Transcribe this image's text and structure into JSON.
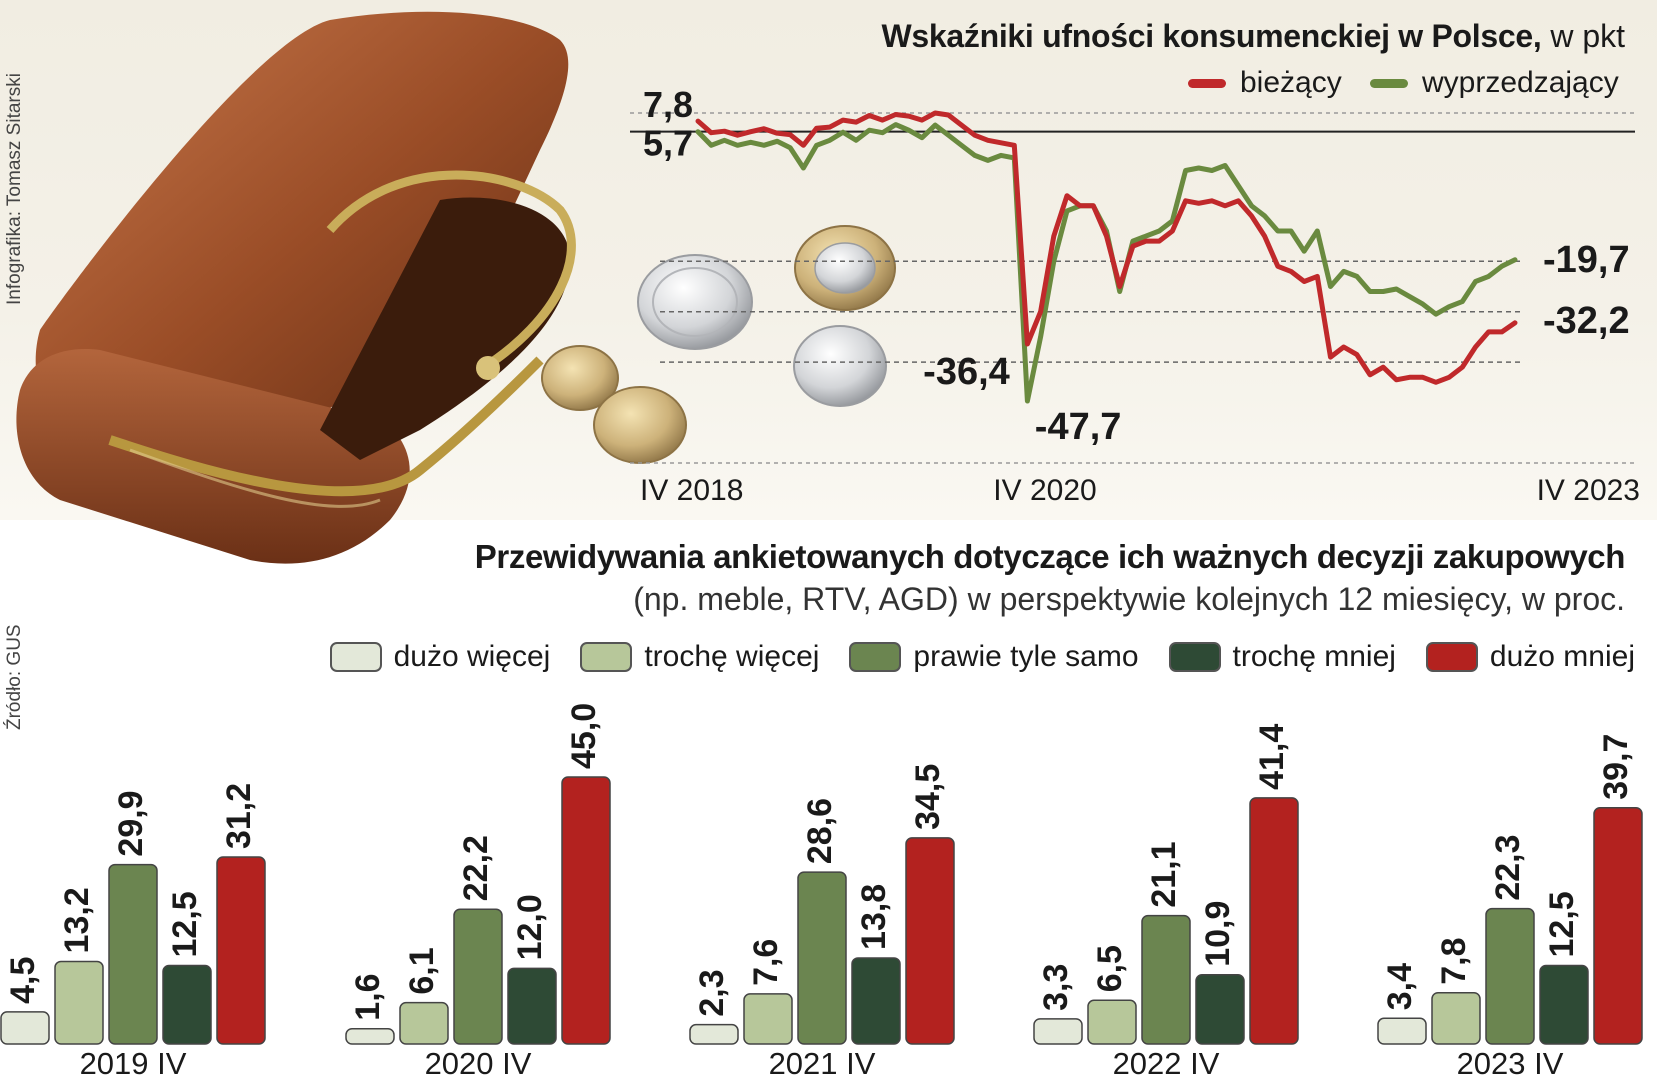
{
  "credits": {
    "infographic": "Infografika: Tomasz Sitarski",
    "source": "Źródło: GUS"
  },
  "colors": {
    "current": "#c0292b",
    "leading": "#6a8a3f",
    "very_more": "#e3e8d9",
    "bit_more": "#b7c79a",
    "same": "#6b8550",
    "bit_less": "#2e4a35",
    "much_less": "#b3221f"
  },
  "chart_data": [
    {
      "type": "line",
      "title": "Wskaźniki ufności konsumenckiej w Polsce,",
      "units": "w pkt",
      "x_labels": [
        "IV 2018",
        "IV 2020",
        "IV 2023"
      ],
      "x_range": [
        "2018-04",
        "2023-04"
      ],
      "ylim": [
        -60,
        10
      ],
      "reference_lines": [
        5.7,
        -20,
        -30,
        -40
      ],
      "annotations": [
        {
          "series": "bieżący",
          "date": "2018-04",
          "label": "7,8"
        },
        {
          "series": "wyprzedzający",
          "date": "2018-04",
          "label": "5,7"
        },
        {
          "series": "bieżący",
          "date": "2020-04",
          "label": "-36,4"
        },
        {
          "series": "wyprzedzający",
          "date": "2020-04",
          "label": "-47,7"
        },
        {
          "series": "wyprzedzający",
          "date": "2023-04",
          "label": "-19,7"
        },
        {
          "series": "bieżący",
          "date": "2023-04",
          "label": "-32,2"
        }
      ],
      "series": [
        {
          "name": "bieżący",
          "values": [
            7.8,
            5.5,
            5.8,
            5.0,
            5.7,
            6.3,
            5.4,
            5.1,
            3.0,
            6.4,
            6.6,
            8.0,
            7.6,
            8.9,
            8.0,
            9.1,
            8.8,
            8.0,
            9.4,
            9.0,
            7.0,
            5.0,
            4.0,
            3.5,
            3.0,
            -36.4,
            -30.0,
            -15.0,
            -7.0,
            -9.0,
            -9.0,
            -15.0,
            -25.0,
            -17.0,
            -16.0,
            -16.0,
            -14.0,
            -8.0,
            -8.5,
            -8.0,
            -9.0,
            -8.0,
            -11.0,
            -15.0,
            -21.0,
            -22.0,
            -24.0,
            -23.0,
            -39.0,
            -37.0,
            -38.5,
            -42.5,
            -41.0,
            -43.5,
            -43.0,
            -43.0,
            -44.0,
            -43.0,
            -41.0,
            -37.0,
            -34.0,
            -34.0,
            -32.2
          ]
        },
        {
          "name": "wyprzedzający",
          "values": [
            5.7,
            3.0,
            4.0,
            3.0,
            3.6,
            3.0,
            3.8,
            2.5,
            -1.5,
            3.0,
            4.0,
            5.6,
            4.0,
            6.0,
            5.5,
            7.1,
            6.0,
            4.5,
            7.0,
            5.0,
            3.0,
            1.0,
            0.0,
            1.0,
            0.5,
            -47.7,
            -35.0,
            -20.0,
            -10.0,
            -9.0,
            -9.0,
            -14.0,
            -26.0,
            -16.0,
            -15.0,
            -14.0,
            -12.0,
            -2.0,
            -1.5,
            -2.0,
            -1.0,
            -5.0,
            -9.0,
            -11.0,
            -14.0,
            -14.0,
            -18.0,
            -14.0,
            -25.0,
            -22.0,
            -23.0,
            -26.0,
            -26.0,
            -25.5,
            -27.0,
            -28.5,
            -30.5,
            -29.0,
            -28.0,
            -24.0,
            -23.0,
            -21.0,
            -19.7
          ]
        }
      ]
    },
    {
      "type": "bar",
      "title": "Przewidywania ankietowanych dotyczące ich ważnych decyzji zakupowych",
      "subtitle": "(np. meble, RTV, AGD) w perspektywie kolejnych 12 miesięcy, w proc.",
      "categories": [
        "2019 IV",
        "2020 IV",
        "2021 IV",
        "2022 IV",
        "2023 IV"
      ],
      "ylim": [
        0,
        45
      ],
      "series": [
        {
          "name": "dużo więcej",
          "values": [
            4.5,
            1.6,
            2.3,
            3.3,
            3.4
          ],
          "labels": [
            "4,5",
            "1,6",
            "2,3",
            "3,3",
            "3,4"
          ]
        },
        {
          "name": "trochę więcej",
          "values": [
            13.2,
            6.1,
            7.6,
            6.5,
            7.8
          ],
          "labels": [
            "13,2",
            "6,1",
            "7,6",
            "6,5",
            "7,8"
          ]
        },
        {
          "name": "prawie tyle samo",
          "values": [
            29.9,
            22.2,
            28.6,
            21.1,
            22.3
          ],
          "labels": [
            "29,9",
            "22,2",
            "28,6",
            "21,1",
            "22,3"
          ]
        },
        {
          "name": "trochę mniej",
          "values": [
            12.5,
            12.0,
            13.8,
            10.9,
            12.5
          ],
          "labels": [
            "12,5",
            "12,0",
            "13,8",
            "10,9",
            "12,5"
          ]
        },
        {
          "name": "dużo mniej",
          "values": [
            31.2,
            45.0,
            34.5,
            41.4,
            39.7
          ],
          "labels": [
            "31,2",
            "45,0",
            "34,5",
            "41,4",
            "39,7"
          ]
        }
      ]
    }
  ],
  "illustration": {
    "subject": "wallet-with-coins-image"
  }
}
